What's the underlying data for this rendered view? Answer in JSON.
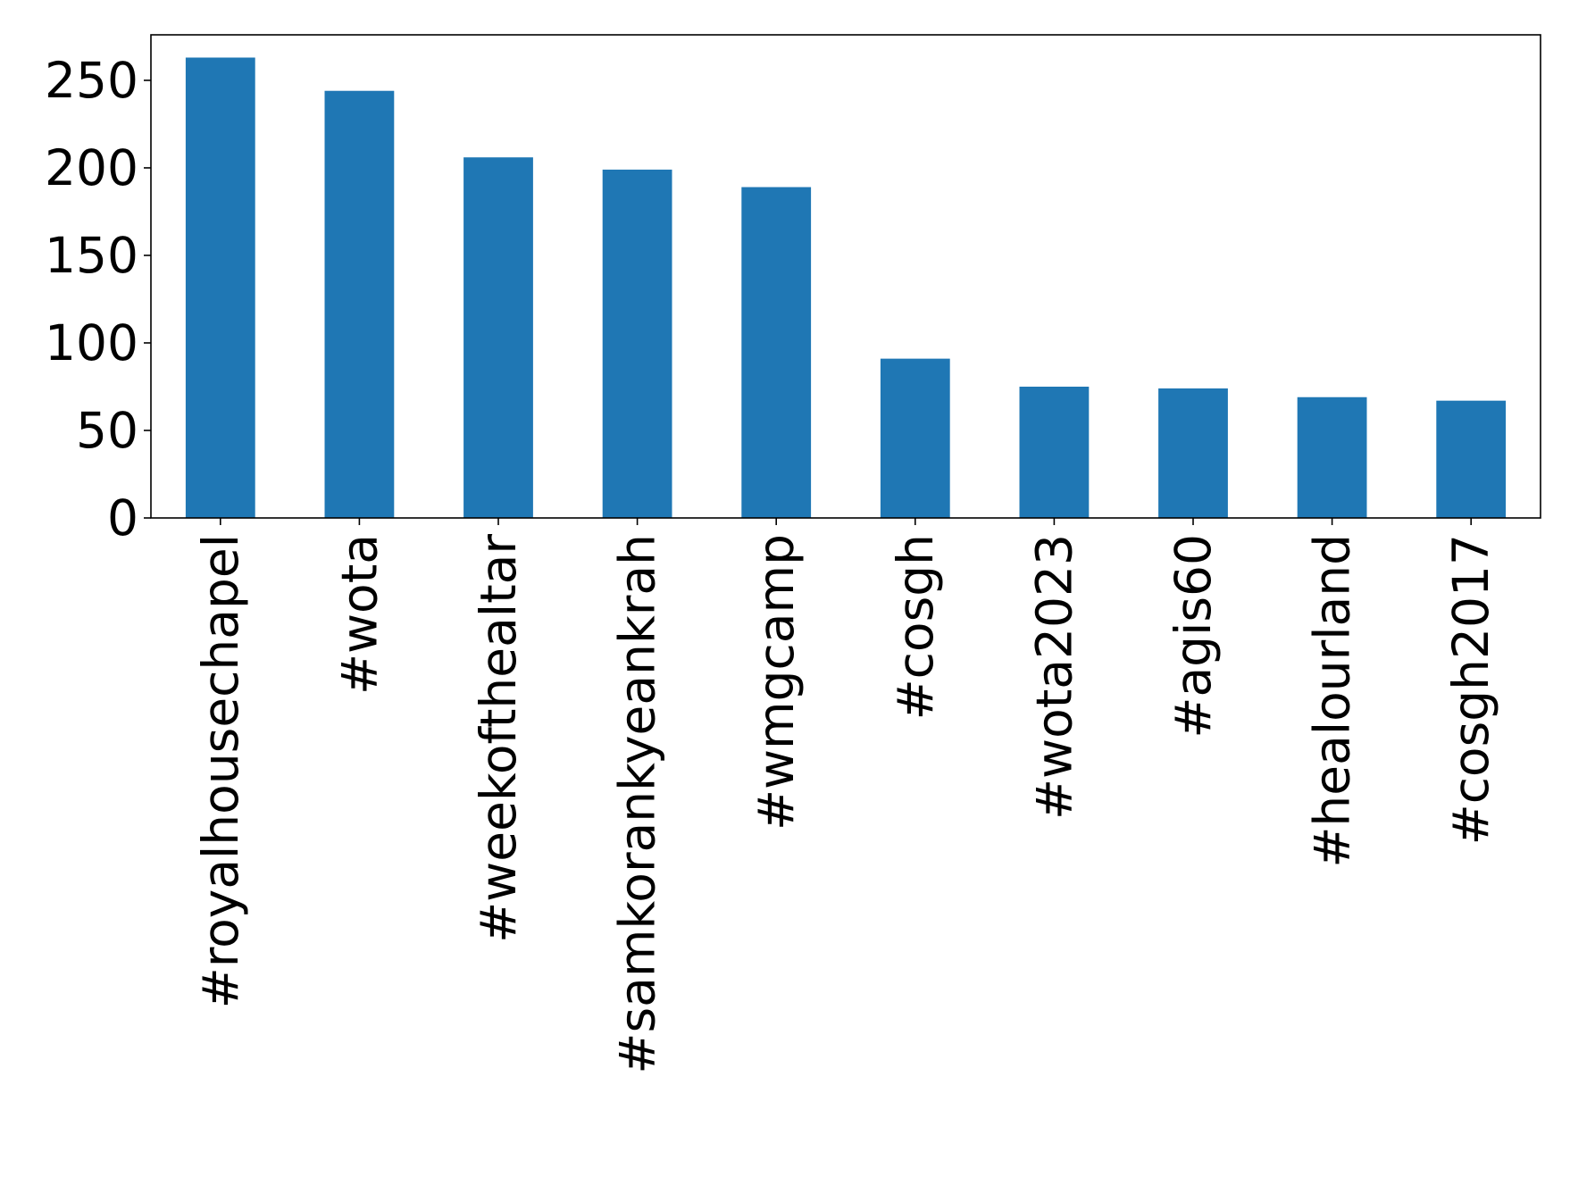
{
  "chart_data": {
    "type": "bar",
    "title": "",
    "xlabel": "",
    "ylabel": "",
    "categories": [
      "#royalhousechapel",
      "#wota",
      "#weekofthealtar",
      "#samkorankyeankrah",
      "#wmgcamp",
      "#cosgh",
      "#wota2023",
      "#agis60",
      "#healourland",
      "#cosgh2017"
    ],
    "values": [
      263,
      244,
      206,
      199,
      189,
      91,
      75,
      74,
      69,
      67
    ],
    "ylim": [
      0,
      276
    ],
    "yticks": [
      0,
      50,
      100,
      150,
      200,
      250
    ],
    "ytick_labels": [
      "0",
      "50",
      "100",
      "150",
      "200",
      "250"
    ],
    "grid": false,
    "legend": "none",
    "colors": {
      "bar": "#1f77b4"
    }
  }
}
